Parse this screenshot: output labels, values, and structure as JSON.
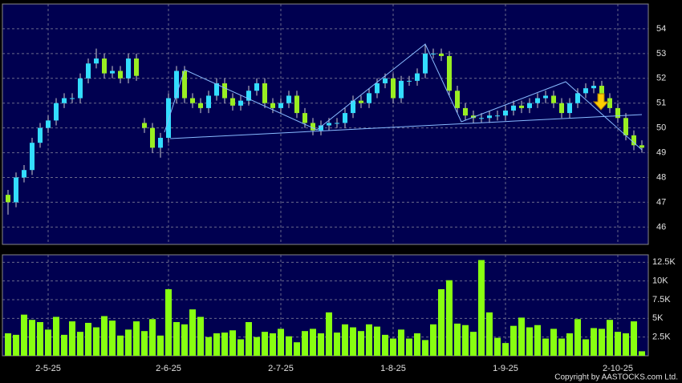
{
  "chart_data": {
    "type": "candlestick",
    "categories": [
      null,
      null,
      null,
      null,
      null,
      "2-5-25",
      null,
      null,
      null,
      null,
      null,
      null,
      null,
      null,
      null,
      null,
      null,
      null,
      null,
      null,
      "2-6-25",
      null,
      null,
      null,
      null,
      null,
      null,
      null,
      null,
      null,
      null,
      null,
      null,
      null,
      "2-7-25",
      null,
      null,
      null,
      null,
      null,
      null,
      null,
      null,
      null,
      null,
      null,
      null,
      null,
      "1-8-25",
      null,
      null,
      null,
      null,
      null,
      null,
      null,
      null,
      null,
      null,
      null,
      null,
      null,
      "1-9-25",
      null,
      null,
      null,
      null,
      null,
      null,
      null,
      null,
      null,
      null,
      null,
      null,
      null,
      "2-10-25",
      null,
      null,
      null
    ],
    "open": [
      47.3,
      47.0,
      48.0,
      48.3,
      49.4,
      50.0,
      50.3,
      51.0,
      51.2,
      51.2,
      52.0,
      52.6,
      52.8,
      52.2,
      52.3,
      52.0,
      52.8,
      50.2,
      50.0,
      49.2,
      49.6,
      51.2,
      52.3,
      51.2,
      51.0,
      50.8,
      51.3,
      51.8,
      51.2,
      50.9,
      51.1,
      51.5,
      51.8,
      51.0,
      50.8,
      51.0,
      51.3,
      50.6,
      50.2,
      49.9,
      50.1,
      50.2,
      50.2,
      50.6,
      51.1,
      51.0,
      51.4,
      51.8,
      52.0,
      51.2,
      51.9,
      51.9,
      52.2,
      53.0,
      53.0,
      52.9,
      51.5,
      50.8,
      50.5,
      50.4,
      50.4,
      50.5,
      50.5,
      50.7,
      50.9,
      50.8,
      51.0,
      51.2,
      51.3,
      51.0,
      50.6,
      51.0,
      51.4,
      51.6,
      51.7,
      51.2,
      50.8,
      50.4,
      49.7,
      49.3
    ],
    "high": [
      47.5,
      48.2,
      48.5,
      49.6,
      50.2,
      50.5,
      51.2,
      51.4,
      51.4,
      52.2,
      52.8,
      53.2,
      53.0,
      52.5,
      52.5,
      53.0,
      53.0,
      50.4,
      50.2,
      49.8,
      51.4,
      52.5,
      52.5,
      51.4,
      51.2,
      51.5,
      52.0,
      52.0,
      51.4,
      51.3,
      51.7,
      52.0,
      52.0,
      51.2,
      51.2,
      51.5,
      51.5,
      50.8,
      50.4,
      50.3,
      50.4,
      50.4,
      50.8,
      51.3,
      51.3,
      51.6,
      52.0,
      52.2,
      52.2,
      52.1,
      52.1,
      52.4,
      53.4,
      53.2,
      53.2,
      53.1,
      51.7,
      51.0,
      50.7,
      50.6,
      50.7,
      50.7,
      50.9,
      51.1,
      51.1,
      51.2,
      51.4,
      51.5,
      51.5,
      51.2,
      51.2,
      51.6,
      51.8,
      51.9,
      51.9,
      51.4,
      51.0,
      50.6,
      49.9,
      49.5
    ],
    "low": [
      46.5,
      46.8,
      47.8,
      48.1,
      49.2,
      49.8,
      50.1,
      50.8,
      51.0,
      51.0,
      51.8,
      52.4,
      52.0,
      52.0,
      51.8,
      51.8,
      51.9,
      49.8,
      49.0,
      48.8,
      49.4,
      51.0,
      51.0,
      50.8,
      50.6,
      50.6,
      51.1,
      51.0,
      50.7,
      50.7,
      50.9,
      51.3,
      50.8,
      50.6,
      50.6,
      50.8,
      50.4,
      50.0,
      49.7,
      49.7,
      49.9,
      50.0,
      50.0,
      50.4,
      50.8,
      50.8,
      51.2,
      51.6,
      51.0,
      51.0,
      51.7,
      51.7,
      52.0,
      52.8,
      52.7,
      51.3,
      50.6,
      50.3,
      50.2,
      50.2,
      50.2,
      50.3,
      50.3,
      50.5,
      50.6,
      50.6,
      50.8,
      51.0,
      50.8,
      50.4,
      50.4,
      50.8,
      51.2,
      51.4,
      51.0,
      50.6,
      50.2,
      49.5,
      49.1,
      49.0
    ],
    "close": [
      47.0,
      48.0,
      48.3,
      49.4,
      50.0,
      50.3,
      51.0,
      51.2,
      51.2,
      52.0,
      52.6,
      52.8,
      52.2,
      52.3,
      52.0,
      52.8,
      52.1,
      50.0,
      49.2,
      49.6,
      51.2,
      52.3,
      51.2,
      51.0,
      50.8,
      51.3,
      51.8,
      51.2,
      50.9,
      51.1,
      51.5,
      51.8,
      51.0,
      50.8,
      51.0,
      51.3,
      50.6,
      50.2,
      49.9,
      50.1,
      50.2,
      50.2,
      50.6,
      51.1,
      51.0,
      51.4,
      51.8,
      52.0,
      51.2,
      51.9,
      51.9,
      52.2,
      53.0,
      53.0,
      52.9,
      51.5,
      50.8,
      50.5,
      50.4,
      50.4,
      50.5,
      50.5,
      50.7,
      50.9,
      50.8,
      51.0,
      51.2,
      51.3,
      51.0,
      50.6,
      51.0,
      51.4,
      51.6,
      51.7,
      51.2,
      50.8,
      50.4,
      49.7,
      49.3,
      49.2
    ],
    "up_color": "#33ddff",
    "down_color": "#99ee22",
    "ylim": [
      45.3,
      55
    ],
    "yticks": [
      46,
      47,
      48,
      49,
      50,
      51,
      52,
      53,
      54
    ],
    "grid": true,
    "volume": {
      "color": "#88ff11",
      "values": [
        3000,
        2800,
        5500,
        4800,
        4500,
        3500,
        5200,
        2800,
        4600,
        3200,
        4400,
        3800,
        5300,
        4700,
        2700,
        3500,
        4600,
        3300,
        4900,
        2700,
        8900,
        4500,
        4200,
        6200,
        5200,
        2500,
        3000,
        3100,
        3400,
        2200,
        4500,
        2500,
        3200,
        3000,
        3600,
        2600,
        1800,
        3300,
        3600,
        3000,
        5800,
        3100,
        4200,
        3800,
        3300,
        4200,
        3900,
        2800,
        2300,
        3500,
        2300,
        3000,
        2100,
        4200,
        8900,
        10100,
        4300,
        4100,
        3200,
        12800,
        5800,
        2400,
        1700,
        4000,
        5100,
        3800,
        4100,
        2300,
        3600,
        2300,
        3000,
        4900,
        2200,
        3700,
        3600,
        4800,
        3200,
        3000,
        4600,
        600
      ],
      "ylim": [
        0,
        13500
      ],
      "yticks": [
        {
          "value": 2500,
          "label": "2.5K"
        },
        {
          "value": 5000,
          "label": "5K"
        },
        {
          "value": 7500,
          "label": "7.5K"
        },
        {
          "value": 10000,
          "label": "10K"
        },
        {
          "value": 12500,
          "label": "12.5K"
        }
      ]
    },
    "copyright": "Copyright by AASTOCKS.com Ltd."
  }
}
